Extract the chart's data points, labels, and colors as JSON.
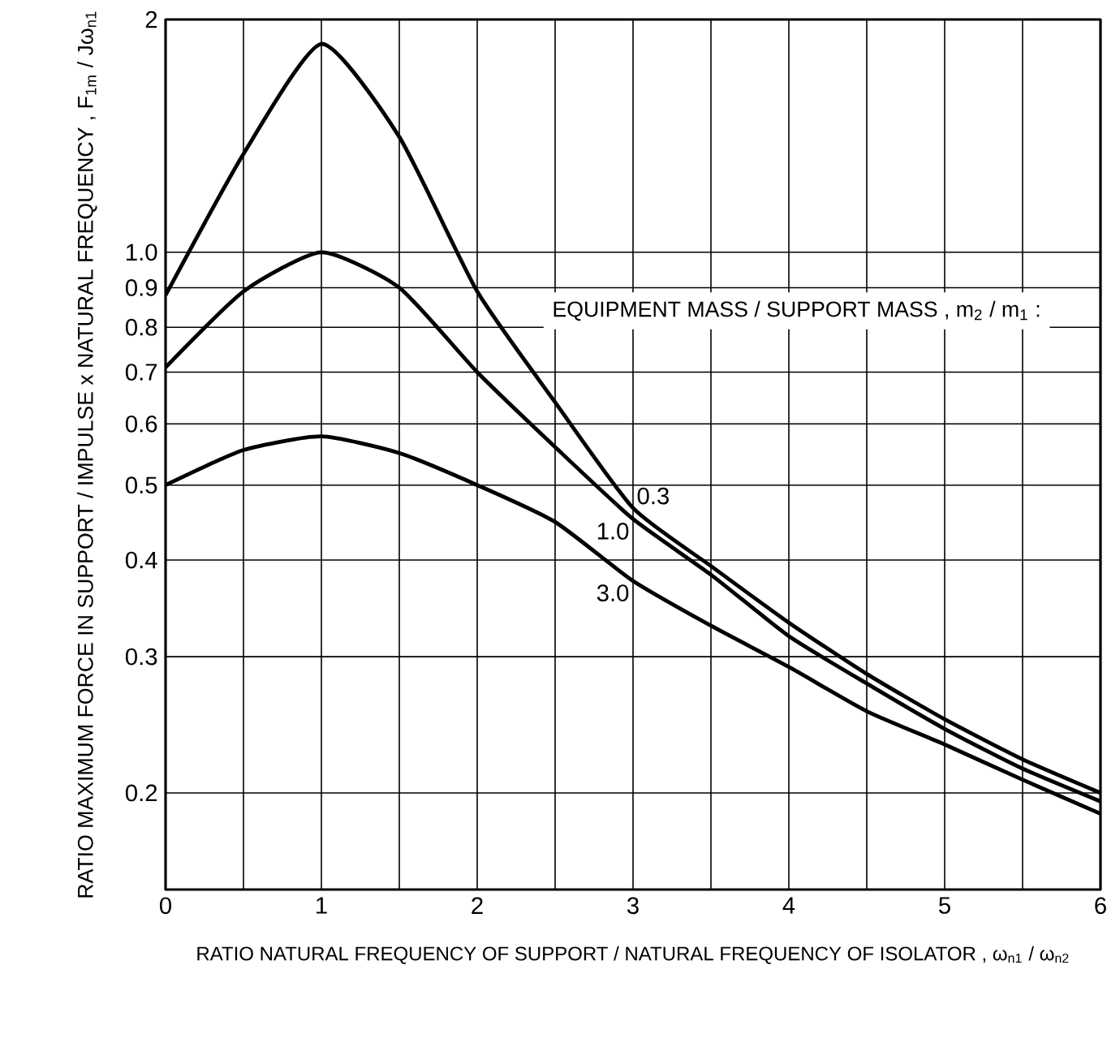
{
  "chart_data": {
    "type": "line",
    "xlabel": "RATIO NATURAL FREQUENCY OF SUPPORT / NATURAL FREQUENCY OF ISOLATOR , ω$_{n1}$ / ω$_{n2}$",
    "ylabel": "RATIO MAXIMUM FORCE IN SUPPORT / IMPULSE x NATURAL FREQUENCY , F$_{1m}$ / Jω$_{n1}$",
    "legend_title": "EQUIPMENT MASS / SUPPORT MASS , m$_{2}$ / m$_{1}$ :",
    "x": [
      0,
      0.5,
      1,
      1.5,
      2,
      2.5,
      3,
      3.5,
      4,
      4.5,
      5,
      5.5,
      6
    ],
    "series": [
      {
        "name": "0.3",
        "color": "#000000",
        "values": [
          0.88,
          1.34,
          1.86,
          1.41,
          0.89,
          0.64,
          0.467,
          0.393,
          0.332,
          0.285,
          0.249,
          0.221,
          0.2
        ]
      },
      {
        "name": "1.0",
        "color": "#000000",
        "values": [
          0.71,
          0.89,
          1.0,
          0.9,
          0.7,
          0.56,
          0.452,
          0.383,
          0.319,
          0.277,
          0.242,
          0.215,
          0.195
        ]
      },
      {
        "name": "3.0",
        "color": "#000000",
        "values": [
          0.5,
          0.555,
          0.578,
          0.55,
          0.5,
          0.448,
          0.376,
          0.329,
          0.291,
          0.255,
          0.231,
          0.208,
          0.188
        ]
      }
    ],
    "xlim": [
      0,
      6
    ],
    "ylim": [
      0.15,
      2
    ],
    "xticks": [
      0,
      {
        "value": 0.5,
        "label": null
      },
      1,
      {
        "value": 1.5,
        "label": null
      },
      2,
      {
        "value": 2.5,
        "label": null
      },
      3,
      {
        "value": 3.5,
        "label": null
      },
      4,
      {
        "value": 4.5,
        "label": null
      },
      5,
      {
        "value": 5.5,
        "label": null
      },
      6
    ],
    "yticks": [
      0.2,
      0.3,
      0.4,
      0.5,
      0.6,
      0.7,
      0.8,
      0.9,
      {
        "value": 1,
        "label": "1.0"
      },
      2
    ],
    "log": "y",
    "grid": true,
    "line_style": "solid",
    "marker": "none"
  }
}
